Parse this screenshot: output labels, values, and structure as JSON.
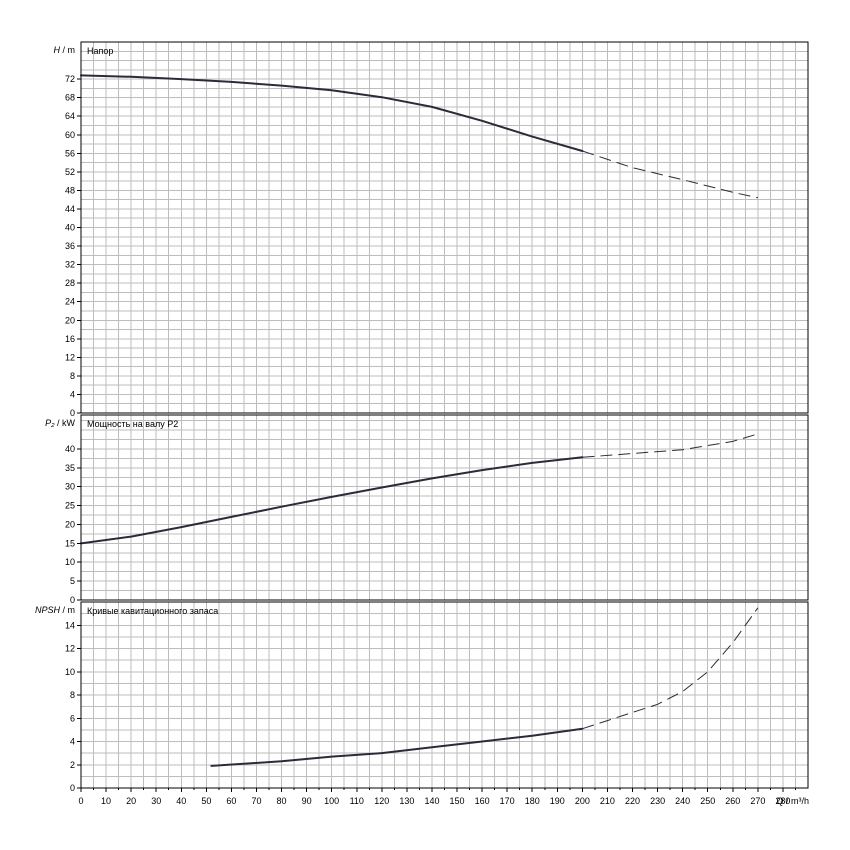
{
  "chart_data": {
    "type": "line",
    "x_axis": {
      "label": "Q / m³/h",
      "range": [
        0,
        290
      ],
      "ticks": [
        0,
        10,
        20,
        30,
        40,
        50,
        60,
        70,
        80,
        90,
        100,
        110,
        120,
        130,
        140,
        150,
        160,
        170,
        180,
        190,
        200,
        210,
        220,
        230,
        240,
        250,
        260,
        270,
        280
      ],
      "grid_step": 5
    },
    "panels": [
      {
        "id": "head",
        "title": "Напор",
        "ylabel_symbol": "H",
        "ylabel_unit": "/ m",
        "ylim": [
          0,
          80
        ],
        "yticks": [
          0,
          4,
          8,
          12,
          16,
          20,
          24,
          28,
          32,
          36,
          40,
          44,
          48,
          52,
          56,
          60,
          64,
          68,
          72
        ],
        "grid_y_step": 2,
        "solid": [
          [
            0,
            72.8
          ],
          [
            20,
            72.5
          ],
          [
            40,
            72.0
          ],
          [
            60,
            71.4
          ],
          [
            80,
            70.6
          ],
          [
            100,
            69.6
          ],
          [
            120,
            68.1
          ],
          [
            140,
            66.0
          ],
          [
            160,
            63.0
          ],
          [
            180,
            59.6
          ],
          [
            200,
            56.5
          ]
        ],
        "dashed": [
          [
            200,
            56.5
          ],
          [
            220,
            52.9
          ],
          [
            240,
            50.3
          ],
          [
            260,
            47.6
          ],
          [
            270,
            46.4
          ]
        ]
      },
      {
        "id": "power",
        "title": "Мощность на валу P2",
        "ylabel_symbol": "P₂",
        "ylabel_unit": "/ kW",
        "ylim": [
          0,
          49
        ],
        "yticks": [
          0,
          5,
          10,
          15,
          20,
          25,
          30,
          35,
          40
        ],
        "grid_y_step": 2.5,
        "solid": [
          [
            0,
            15.0
          ],
          [
            20,
            16.8
          ],
          [
            40,
            19.3
          ],
          [
            60,
            22.0
          ],
          [
            80,
            24.7
          ],
          [
            100,
            27.3
          ],
          [
            120,
            29.8
          ],
          [
            140,
            32.2
          ],
          [
            160,
            34.4
          ],
          [
            180,
            36.3
          ],
          [
            200,
            37.8
          ]
        ],
        "dashed": [
          [
            200,
            37.8
          ],
          [
            220,
            38.8
          ],
          [
            240,
            39.8
          ],
          [
            260,
            42.0
          ],
          [
            270,
            44.0
          ]
        ]
      },
      {
        "id": "npsh",
        "title": "Кривые кавитационного запаса",
        "ylabel_symbol": "NPSH",
        "ylabel_unit": "/ m",
        "ylim": [
          0,
          16
        ],
        "yticks": [
          0,
          2,
          4,
          6,
          8,
          10,
          12,
          14
        ],
        "grid_y_step": 1,
        "solid": [
          [
            52,
            1.9
          ],
          [
            80,
            2.3
          ],
          [
            100,
            2.7
          ],
          [
            120,
            3.0
          ],
          [
            140,
            3.5
          ],
          [
            160,
            4.0
          ],
          [
            180,
            4.5
          ],
          [
            200,
            5.1
          ]
        ],
        "dashed": [
          [
            200,
            5.1
          ],
          [
            210,
            5.8
          ],
          [
            220,
            6.5
          ],
          [
            230,
            7.2
          ],
          [
            240,
            8.3
          ],
          [
            250,
            10.0
          ],
          [
            260,
            12.5
          ],
          [
            270,
            15.5
          ]
        ]
      }
    ]
  }
}
